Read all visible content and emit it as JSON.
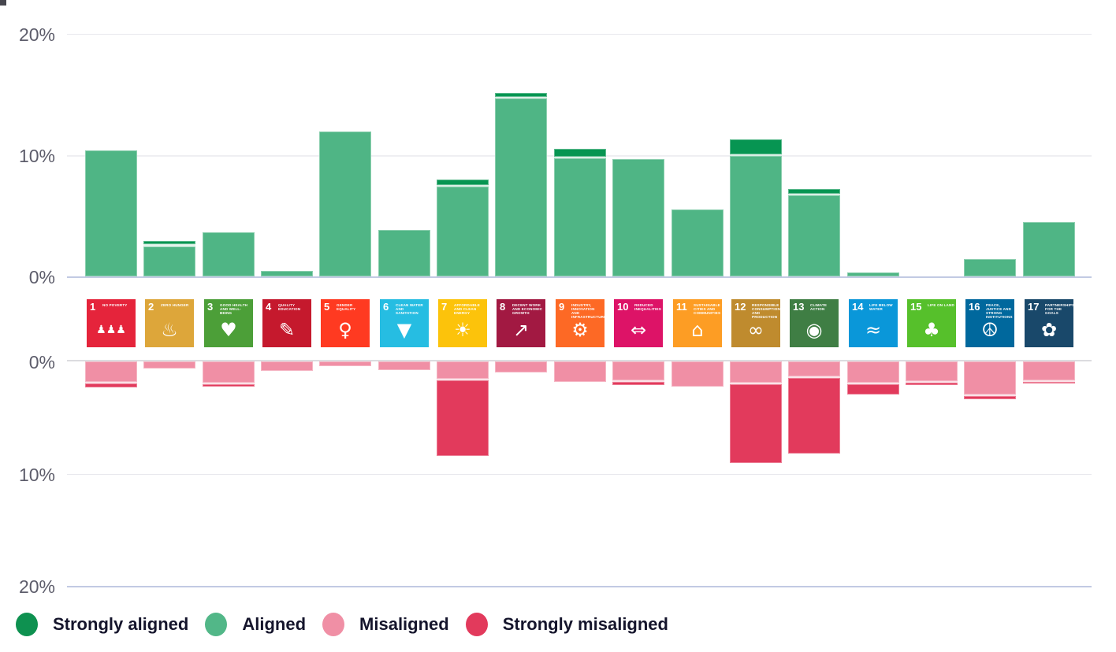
{
  "chart_data": {
    "type": "bar",
    "subtype": "diverging-stacked-bar",
    "title": "",
    "unit": "%",
    "axis": {
      "top_ticks": [
        "20%",
        "10%",
        "0%"
      ],
      "bottom_ticks": [
        "0%",
        "10%",
        "20%"
      ],
      "top_range": [
        0,
        20
      ],
      "bottom_range": [
        0,
        20
      ],
      "grid": "on"
    },
    "series_order": [
      "strongly_aligned",
      "aligned",
      "misaligned",
      "strongly_misaligned"
    ],
    "sdgs": [
      {
        "number": 1,
        "title": "No Poverty",
        "color": "#E5243B",
        "glyph": "♟♟♟",
        "strongly_aligned": 0,
        "aligned": 10.4,
        "misaligned": 1.8,
        "strongly_misaligned": 0.5
      },
      {
        "number": 2,
        "title": "Zero Hunger",
        "color": "#DDA63A",
        "glyph": "♨",
        "strongly_aligned": 0.45,
        "aligned": 2.5,
        "misaligned": 0.65,
        "strongly_misaligned": 0
      },
      {
        "number": 3,
        "title": "Good Health and Well-Being",
        "color": "#4C9F38",
        "glyph": "♥",
        "strongly_aligned": 0,
        "aligned": 3.65,
        "misaligned": 1.9,
        "strongly_misaligned": 0.35
      },
      {
        "number": 4,
        "title": "Quality Education",
        "color": "#C5192D",
        "glyph": "✎",
        "strongly_aligned": 0,
        "aligned": 0.45,
        "misaligned": 0.85,
        "strongly_misaligned": 0
      },
      {
        "number": 5,
        "title": "Gender Equality",
        "color": "#FF3A21",
        "glyph": "♀",
        "strongly_aligned": 0,
        "aligned": 11.95,
        "misaligned": 0.4,
        "strongly_misaligned": 0
      },
      {
        "number": 6,
        "title": "Clean Water and Sanitation",
        "color": "#26BDE2",
        "glyph": "▼",
        "strongly_aligned": 0,
        "aligned": 3.8,
        "misaligned": 0.75,
        "strongly_misaligned": 0
      },
      {
        "number": 7,
        "title": "Affordable and Clean Energy",
        "color": "#FCC30B",
        "glyph": "☀",
        "strongly_aligned": 0.6,
        "aligned": 7.4,
        "misaligned": 1.55,
        "strongly_misaligned": 6.75
      },
      {
        "number": 8,
        "title": "Decent Work and Economic Growth",
        "color": "#A21942",
        "glyph": "↗",
        "strongly_aligned": 0.4,
        "aligned": 14.7,
        "misaligned": 0.95,
        "strongly_misaligned": 0
      },
      {
        "number": 9,
        "title": "Industry, Innovation and Infrastructure",
        "color": "#FD6925",
        "glyph": "⚙",
        "strongly_aligned": 0.8,
        "aligned": 9.75,
        "misaligned": 1.8,
        "strongly_misaligned": 0
      },
      {
        "number": 10,
        "title": "Reduced Inequalities",
        "color": "#DD1367",
        "glyph": "⇔",
        "strongly_aligned": 0,
        "aligned": 9.7,
        "misaligned": 1.65,
        "strongly_misaligned": 0.4
      },
      {
        "number": 11,
        "title": "Sustainable Cities and Communities",
        "color": "#FD9D24",
        "glyph": "⌂",
        "strongly_aligned": 0,
        "aligned": 5.5,
        "misaligned": 2.25,
        "strongly_misaligned": 0
      },
      {
        "number": 12,
        "title": "Responsible Consumption and Production",
        "color": "#BF8B2E",
        "glyph": "∞",
        "strongly_aligned": 1.35,
        "aligned": 9.95,
        "misaligned": 1.9,
        "strongly_misaligned": 7.05
      },
      {
        "number": 13,
        "title": "Climate Action",
        "color": "#3F7E44",
        "glyph": "◉",
        "strongly_aligned": 0.5,
        "aligned": 6.7,
        "misaligned": 1.3,
        "strongly_misaligned": 6.85
      },
      {
        "number": 14,
        "title": "Life Below Water",
        "color": "#0A97D9",
        "glyph": "≈",
        "strongly_aligned": 0,
        "aligned": 0.3,
        "misaligned": 1.85,
        "strongly_misaligned": 1.1
      },
      {
        "number": 15,
        "title": "Life on Land",
        "color": "#56C02B",
        "glyph": "♣",
        "strongly_aligned": 0,
        "aligned": 0,
        "misaligned": 1.75,
        "strongly_misaligned": 0.3
      },
      {
        "number": 16,
        "title": "Peace, Justice and Strong Institutions",
        "color": "#00689D",
        "glyph": "☮",
        "strongly_aligned": 0,
        "aligned": 1.45,
        "misaligned": 2.95,
        "strongly_misaligned": 0.35
      },
      {
        "number": 17,
        "title": "Partnerships for the Goals",
        "color": "#19486A",
        "glyph": "✿",
        "strongly_aligned": 0,
        "aligned": 4.5,
        "misaligned": 1.7,
        "strongly_misaligned": 0.25
      }
    ]
  },
  "legend": {
    "items": [
      {
        "label": "Strongly aligned",
        "color": "#0E9150"
      },
      {
        "label": "Aligned",
        "color": "#52B788"
      },
      {
        "label": "Misaligned",
        "color": "#F08FA5"
      },
      {
        "label": "Strongly misaligned",
        "color": "#E23A5C"
      }
    ]
  },
  "colors": {
    "strongly_aligned": "#079552",
    "aligned": "#4FB585",
    "misaligned": "#F08FA5",
    "strongly_misaligned": "#E23A5C",
    "axis_line": "#c2cae3",
    "tick_text": "#5d5d6b"
  }
}
